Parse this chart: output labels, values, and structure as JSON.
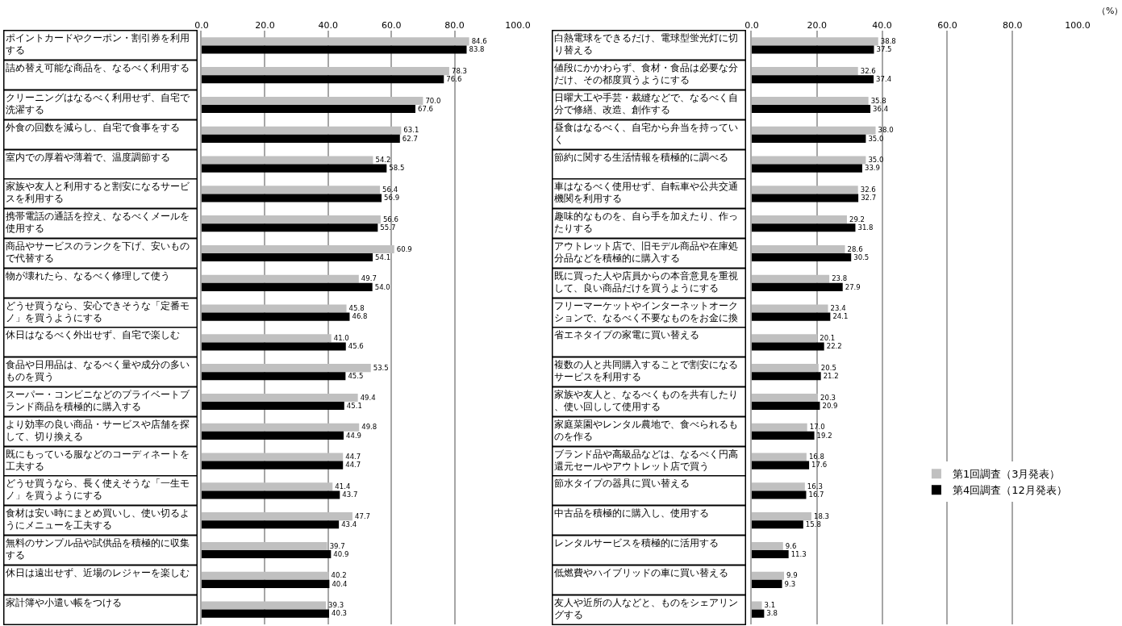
{
  "chart_data": [
    {
      "type": "bar",
      "orientation": "horizontal",
      "categories": [
        "ポイントカードやクーポン・割引券を利用する",
        "詰め替え可能な商品を、なるべく利用する",
        "クリーニングはなるべく利用せず、自宅で洗濯する",
        "外食の回数を減らし、自宅で食事をする",
        "室内での厚着や薄着で、温度調節する",
        "家族や友人と利用すると割安になるサービスを利用する",
        "携帯電話の通話を控え、なるべくメールを使用する",
        "商品やサービスのランクを下げ、安いもので代替する",
        "物が壊れたら、なるべく修理して使う",
        "どうせ買うなら、安心できそうな「定番モノ」を買うようにする",
        "休日はなるべく外出せず、自宅で楽しむ",
        "食品や日用品は、なるべく量や成分の多いものを買う",
        "スーパー・コンビニなどのプライベートブランド商品を積極的に購入する",
        "より効率の良い商品・サービスや店舗を探して、切り換える",
        "既にもっている服などのコーディネートを工夫する",
        "どうせ買うなら、長く使えそうな「一生モノ」を買うようにする",
        "食材は安い時にまとめ買いし、使い切るようにメニューを工夫する",
        "無料のサンプル品や試供品を積極的に収集する",
        "休日は遠出せず、近場のレジャーを楽しむ",
        "家計簿や小遣い帳をつける"
      ],
      "series": [
        {
          "color": "#c0c0c0",
          "values": [
            84.6,
            78.3,
            70.0,
            63.1,
            54.2,
            56.4,
            56.6,
            60.9,
            49.7,
            45.8,
            41.0,
            53.5,
            49.4,
            49.8,
            44.7,
            41.4,
            47.7,
            39.7,
            40.2,
            39.3
          ],
          "value_labels": [
            "84.6",
            "78.3",
            "70.0",
            "63.1",
            "54.2",
            "56.4",
            "56.6",
            "60.9",
            "49.7",
            "45.8",
            "41.0",
            "53.5",
            "49.4",
            "49.8",
            "44.7",
            "41.4",
            "47.7",
            "39.7",
            "40.2",
            "39.3"
          ]
        },
        {
          "color": "#000000",
          "values": [
            83.8,
            76.6,
            67.6,
            62.7,
            58.5,
            56.9,
            55.7,
            54.1,
            54.0,
            46.8,
            45.6,
            45.5,
            45.1,
            44.9,
            44.7,
            43.7,
            43.4,
            40.9,
            40.4,
            40.3
          ],
          "value_labels": [
            "83.8",
            "76.6",
            "67.6",
            "62.7",
            "58.5",
            "56.9",
            "55.7",
            "54.1",
            "54.0",
            "46.8",
            "45.6",
            "45.5",
            "45.1",
            "44.9",
            "44.7",
            "43.7",
            "43.4",
            "40.9",
            "40.4",
            "40.3"
          ]
        }
      ],
      "xlim": [
        0,
        100
      ],
      "xticks": [
        {
          "value": 0,
          "label": "0.0"
        },
        {
          "value": 20,
          "label": "20.0"
        },
        {
          "value": 40,
          "label": "40.0"
        },
        {
          "value": 60,
          "label": "60.0"
        },
        {
          "value": 80,
          "label": "80.0"
        },
        {
          "value": 100,
          "label": "100.0"
        }
      ],
      "grid": "x",
      "data_labels": true,
      "legend": false
    },
    {
      "type": "bar",
      "orientation": "horizontal",
      "xlabel": "（%）",
      "categories": [
        "白熱電球をできるだけ、電球型蛍光灯に切り替える",
        "値段にかかわらず、食材・食品は必要な分だけ、その都度買うようにする",
        "日曜大工や手芸・裁縫などで、なるべく自分で修繕、改造、創作する",
        "昼食はなるべく、自宅から弁当を持っていく",
        "節約に関する生活情報を積極的に調べる",
        "車はなるべく使用せず、自転車や公共交通機関を利用する",
        "趣味的なものを、自ら手を加えたり、作ったりする",
        "アウトレット店で、旧モデル商品や在庫処分品などを積極的に購入する",
        "既に買った人や店員からの本音意見を重視して、良い商品だけを買うようにする",
        "フリーマーケットやインターネットオークションで、なるべく不要なものをお金に換",
        "省エネタイプの家電に買い替える",
        "複数の人と共同購入することで割安になるサービスを利用する",
        "家族や友人と、なるべくものを共有したり、使い回しして使用する",
        "家庭菜園やレンタル農地で、食べられるものを作る",
        "ブランド品や高級品などは、なるべく円高還元セールやアウトレット店で買う",
        "節水タイプの器具に買い替える",
        "中古品を積極的に購入し、使用する",
        "レンタルサービスを積極的に活用する",
        "低燃費やハイブリッドの車に買い替える",
        "友人や近所の人などと、ものをシェアリングする"
      ],
      "series": [
        {
          "name": "第1回調査（3月発表）",
          "color": "#c0c0c0",
          "values": [
            38.8,
            32.6,
            35.8,
            38.0,
            35.0,
            32.6,
            29.2,
            28.6,
            23.8,
            23.4,
            20.1,
            20.5,
            20.3,
            17.0,
            16.8,
            16.3,
            18.3,
            9.6,
            9.9,
            3.1
          ],
          "value_labels": [
            "38.8",
            "32.6",
            "35.8",
            "38.0",
            "35.0",
            "32.6",
            "29.2",
            "28.6",
            "23.8",
            "23.4",
            "20.1",
            "20.5",
            "20.3",
            "17.0",
            "16.8",
            "16.3",
            "18.3",
            "9.6",
            "9.9",
            "3.1"
          ]
        },
        {
          "name": "第4回調査（12月発表）",
          "color": "#000000",
          "values": [
            37.5,
            37.4,
            36.4,
            35.0,
            33.9,
            32.7,
            31.8,
            30.5,
            27.9,
            24.1,
            22.2,
            21.2,
            20.9,
            19.2,
            17.6,
            16.7,
            15.8,
            11.3,
            9.3,
            3.8
          ],
          "value_labels": [
            "37.5",
            "37.4",
            "36.4",
            "35.0",
            "33.9",
            "32.7",
            "31.8",
            "30.5",
            "27.9",
            "24.1",
            "22.2",
            "21.2",
            "20.9",
            "19.2",
            "17.6",
            "16.7",
            "15.8",
            "11.3",
            "9.3",
            "3.8"
          ]
        }
      ],
      "xlim": [
        0,
        100
      ],
      "xticks": [
        {
          "value": 0,
          "label": "0.0"
        },
        {
          "value": 20,
          "label": "20.0"
        },
        {
          "value": 40,
          "label": "40.0"
        },
        {
          "value": 60,
          "label": "60.0"
        },
        {
          "value": 80,
          "label": "80.0"
        },
        {
          "value": 100,
          "label": "100.0"
        }
      ],
      "grid": "x",
      "data_labels": true,
      "legend": "bottom right"
    }
  ]
}
